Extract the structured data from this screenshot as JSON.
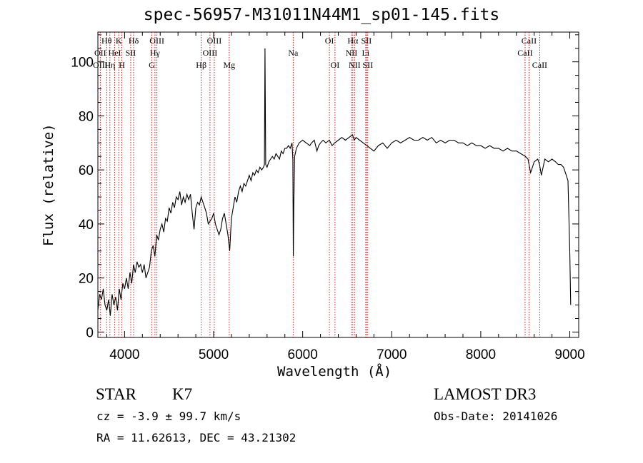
{
  "title": "spec-56957-M31011N44M1_sp01-145.fits",
  "info": {
    "class": "STAR",
    "subclass": "K7",
    "survey": "LAMOST DR3",
    "cz": "cz = -3.9 ± 99.7 km/s",
    "obs_date": "Obs-Date: 20141026",
    "radec": "RA =  11.62613, DEC =  43.21302"
  },
  "chart_data": {
    "type": "line",
    "title": "spec-56957-M31011N44M1_sp01-145.fits",
    "xlabel": "Wavelength (Å)",
    "ylabel": "Flux (relative)",
    "xlim": [
      3700,
      9100
    ],
    "ylim": [
      -2,
      111
    ],
    "xticks": [
      4000,
      5000,
      6000,
      7000,
      8000,
      9000
    ],
    "yticks": [
      0,
      20,
      40,
      60,
      80,
      100
    ],
    "series": [
      {
        "name": "spectrum",
        "x": [
          3700,
          3720,
          3740,
          3760,
          3780,
          3800,
          3820,
          3840,
          3860,
          3880,
          3900,
          3920,
          3940,
          3960,
          3980,
          4000,
          4020,
          4040,
          4060,
          4080,
          4100,
          4120,
          4140,
          4160,
          4180,
          4200,
          4220,
          4240,
          4260,
          4280,
          4300,
          4320,
          4340,
          4360,
          4380,
          4400,
          4420,
          4440,
          4460,
          4480,
          4500,
          4520,
          4540,
          4560,
          4580,
          4600,
          4620,
          4640,
          4660,
          4680,
          4700,
          4720,
          4740,
          4760,
          4780,
          4800,
          4820,
          4840,
          4860,
          4880,
          4900,
          4920,
          4940,
          4960,
          4980,
          5000,
          5020,
          5040,
          5060,
          5080,
          5100,
          5120,
          5140,
          5160,
          5180,
          5200,
          5220,
          5240,
          5260,
          5280,
          5300,
          5320,
          5340,
          5360,
          5380,
          5400,
          5420,
          5440,
          5460,
          5480,
          5500,
          5520,
          5540,
          5560,
          5570,
          5577,
          5585,
          5600,
          5620,
          5640,
          5660,
          5680,
          5700,
          5720,
          5740,
          5760,
          5780,
          5800,
          5820,
          5840,
          5860,
          5880,
          5890,
          5895,
          5900,
          5910,
          5930,
          5960,
          6000,
          6040,
          6080,
          6100,
          6130,
          6160,
          6180,
          6200,
          6230,
          6260,
          6300,
          6330,
          6360,
          6400,
          6440,
          6480,
          6520,
          6560,
          6580,
          6600,
          6640,
          6680,
          6720,
          6760,
          6800,
          6850,
          6900,
          6950,
          7000,
          7050,
          7100,
          7150,
          7200,
          7250,
          7300,
          7350,
          7400,
          7450,
          7500,
          7550,
          7600,
          7650,
          7700,
          7750,
          7800,
          7850,
          7900,
          7950,
          8000,
          8050,
          8100,
          8150,
          8200,
          8250,
          8300,
          8350,
          8400,
          8450,
          8500,
          8530,
          8560,
          8600,
          8640,
          8660,
          8680,
          8720,
          8760,
          8800,
          8840,
          8870,
          8900,
          8930,
          8960,
          8980,
          9000,
          9010
        ],
        "y": [
          8,
          14,
          12,
          16,
          10,
          8,
          12,
          6,
          14,
          10,
          13,
          8,
          16,
          12,
          18,
          16,
          20,
          16,
          22,
          18,
          25,
          22,
          26,
          24,
          25,
          22,
          25,
          20,
          22,
          24,
          30,
          32,
          28,
          36,
          34,
          38,
          40,
          37,
          42,
          41,
          46,
          44,
          48,
          46,
          50,
          49,
          52,
          47,
          50,
          48,
          51,
          49,
          51,
          44,
          38,
          46,
          48,
          47,
          50,
          48,
          46,
          44,
          40,
          41,
          42,
          44,
          40,
          38,
          36,
          38,
          42,
          44,
          40,
          36,
          30,
          42,
          46,
          50,
          48,
          52,
          54,
          52,
          55,
          54,
          56,
          58,
          56,
          59,
          58,
          60,
          59,
          61,
          60,
          61,
          62,
          105,
          62,
          61,
          63,
          64,
          65,
          64,
          66,
          65,
          64,
          67,
          66,
          68,
          68,
          69,
          68,
          70,
          64,
          28,
          46,
          65,
          68,
          70,
          71,
          70,
          69,
          70,
          71,
          67,
          69,
          70,
          71,
          70,
          71,
          69,
          70,
          71,
          72,
          71,
          72,
          73,
          71,
          72,
          71,
          70,
          69,
          68,
          67,
          69,
          70,
          68,
          70,
          71,
          70,
          71,
          72,
          71,
          71,
          72,
          71,
          72,
          70,
          71,
          70,
          71,
          71,
          70,
          70,
          69,
          70,
          69,
          69,
          68,
          69,
          68,
          68,
          67,
          68,
          67,
          67,
          66,
          65,
          64,
          59,
          63,
          64,
          62,
          58,
          64,
          63,
          64,
          63,
          62,
          62,
          61,
          58,
          56,
          30,
          10
        ]
      }
    ],
    "line_labels": [
      {
        "name": "Hθ",
        "x": 3798,
        "row": 0
      },
      {
        "name": "OII",
        "x": 3727,
        "row": 1
      },
      {
        "name": "OIII",
        "x": 3727,
        "row": 2
      },
      {
        "name": "K",
        "x": 3934,
        "row": 0
      },
      {
        "name": "HeI",
        "x": 3889,
        "row": 1
      },
      {
        "name": "Hη",
        "x": 3835,
        "row": 2
      },
      {
        "name": "SII",
        "x": 4069,
        "row": 1
      },
      {
        "name": "H",
        "x": 3969,
        "row": 2
      },
      {
        "name": "Hδ",
        "x": 4102,
        "row": 0
      },
      {
        "name": "OIII",
        "x": 4363,
        "row": 0
      },
      {
        "name": "Hγ",
        "x": 4341,
        "row": 1
      },
      {
        "name": "G",
        "x": 4305,
        "row": 2
      },
      {
        "name": "OIII",
        "x": 5007,
        "row": 0
      },
      {
        "name": "OIII",
        "x": 4959,
        "row": 1
      },
      {
        "name": "Hβ",
        "x": 4861,
        "row": 2
      },
      {
        "name": "Mg",
        "x": 5175,
        "row": 2
      },
      {
        "name": "Na",
        "x": 5893,
        "row": 1
      },
      {
        "name": "OI",
        "x": 6300,
        "row": 0
      },
      {
        "name": "OI",
        "x": 6363,
        "row": 2
      },
      {
        "name": "Hα",
        "x": 6563,
        "row": 0
      },
      {
        "name": "SII",
        "x": 6716,
        "row": 0
      },
      {
        "name": "NII",
        "x": 6548,
        "row": 1
      },
      {
        "name": "Li",
        "x": 6708,
        "row": 1
      },
      {
        "name": "NII",
        "x": 6583,
        "row": 2
      },
      {
        "name": "SII",
        "x": 6731,
        "row": 2
      },
      {
        "name": "CaII",
        "x": 8542,
        "row": 0
      },
      {
        "name": "CaII",
        "x": 8498,
        "row": 1
      },
      {
        "name": "CaII",
        "x": 8662,
        "row": 2
      }
    ]
  }
}
